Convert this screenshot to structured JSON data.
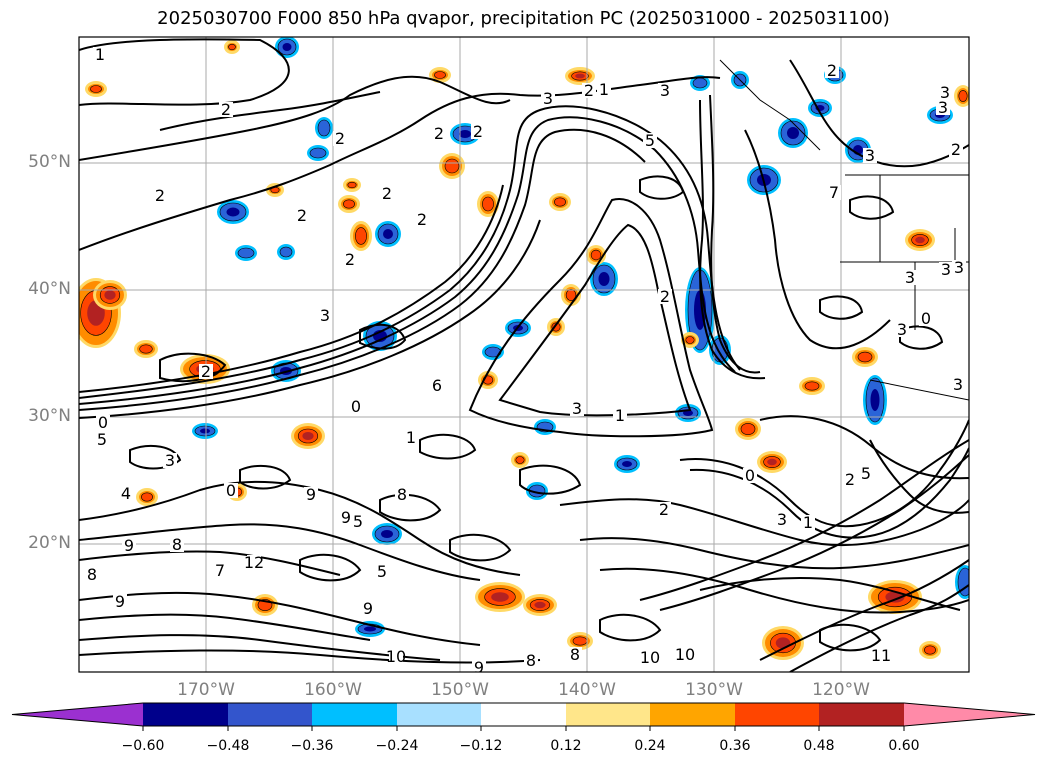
{
  "title": "2025030700 F000 850 hPa qvapor, precipitation PC (2025031000 - 2025031100)",
  "map": {
    "lat_labels": [
      "50°N",
      "40°N",
      "30°N",
      "20°N"
    ],
    "lon_labels": [
      "170°W",
      "160°W",
      "150°W",
      "140°W",
      "130°W",
      "120°W"
    ],
    "lat_range": [
      10,
      60
    ],
    "lon_range": [
      -180,
      -110
    ],
    "gridlines": true,
    "contour_labels": [
      "1",
      "2",
      "2",
      "2",
      "3",
      "2",
      "1",
      "2",
      "2",
      "3",
      "3",
      "2",
      "3",
      "2",
      "2",
      "2",
      "2",
      "5",
      "3",
      "3",
      "2",
      "2",
      "3",
      "2",
      "1",
      "3",
      "3",
      "3",
      "2",
      "5",
      "3",
      "0",
      "1",
      "2",
      "4",
      "3",
      "0",
      "5",
      "0",
      "1",
      "0",
      "9",
      "9",
      "5",
      "5",
      "8",
      "9",
      "8",
      "9",
      "10",
      "7",
      "9",
      "8",
      "9",
      "8",
      "8",
      "10",
      "10",
      "11",
      "12",
      "6",
      "7",
      "3",
      "0",
      "3"
    ]
  },
  "colorbar": {
    "tick_labels": [
      "−0.60",
      "−0.48",
      "−0.36",
      "−0.24",
      "−0.12",
      "0.12",
      "0.24",
      "0.36",
      "0.48",
      "0.60"
    ],
    "colors": [
      "#9b30d0",
      "#00008b",
      "#3355cc",
      "#00bfff",
      "#a8e0ff",
      "#ffffff",
      "#ffe68a",
      "#ffa500",
      "#ff4500",
      "#b22222",
      "#ff8aa8"
    ],
    "extend": "both"
  },
  "colors": {
    "negative_dark": "#00008b",
    "negative_mid": "#2a64d8",
    "negative_light": "#00bfff",
    "positive_light": "#ffd966",
    "positive_mid": "#ff8c00",
    "positive_strong": "#ff4500",
    "positive_dark": "#b22222",
    "contour": "#000000"
  }
}
